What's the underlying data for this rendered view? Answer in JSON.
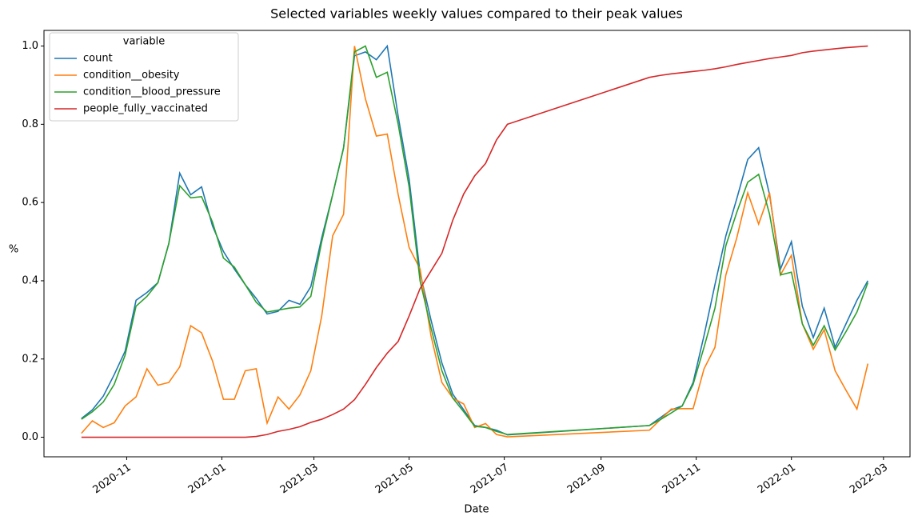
{
  "chart_data": {
    "type": "line",
    "title": "Selected variables weekly values compared to their peak values",
    "x_label": "Date",
    "y_label": "%",
    "x": [
      "2020-10-03",
      "2020-10-10",
      "2020-10-17",
      "2020-10-24",
      "2020-10-31",
      "2020-11-07",
      "2020-11-14",
      "2020-11-21",
      "2020-11-28",
      "2020-12-05",
      "2020-12-12",
      "2020-12-19",
      "2020-12-26",
      "2021-01-02",
      "2021-01-09",
      "2021-01-16",
      "2021-01-23",
      "2021-01-30",
      "2021-02-06",
      "2021-02-13",
      "2021-02-20",
      "2021-02-27",
      "2021-03-06",
      "2021-03-13",
      "2021-03-20",
      "2021-03-27",
      "2021-04-03",
      "2021-04-10",
      "2021-04-17",
      "2021-04-24",
      "2021-05-01",
      "2021-05-08",
      "2021-05-15",
      "2021-05-22",
      "2021-05-29",
      "2021-06-05",
      "2021-06-12",
      "2021-06-19",
      "2021-06-26",
      "2021-07-03",
      "2021-10-02",
      "2021-10-09",
      "2021-10-16",
      "2021-10-23",
      "2021-10-30",
      "2021-11-06",
      "2021-11-13",
      "2021-11-20",
      "2021-11-27",
      "2021-12-04",
      "2021-12-11",
      "2021-12-18",
      "2021-12-25",
      "2022-01-01",
      "2022-01-08",
      "2022-01-15",
      "2022-01-22",
      "2022-01-29",
      "2022-02-05",
      "2022-02-12",
      "2022-02-19"
    ],
    "series": [
      {
        "name": "count",
        "color": "#1f77b4",
        "values": [
          0.048,
          0.07,
          0.105,
          0.16,
          0.22,
          0.35,
          0.37,
          0.395,
          0.495,
          0.675,
          0.62,
          0.64,
          0.54,
          0.475,
          0.43,
          0.39,
          0.355,
          0.315,
          0.322,
          0.35,
          0.34,
          0.385,
          0.51,
          0.62,
          0.74,
          0.975,
          0.985,
          0.965,
          1.0,
          0.82,
          0.66,
          0.42,
          0.3,
          0.19,
          0.11,
          0.07,
          0.03,
          0.025,
          0.018,
          0.006,
          0.03,
          0.05,
          0.07,
          0.08,
          0.14,
          0.26,
          0.39,
          0.515,
          0.61,
          0.71,
          0.74,
          0.62,
          0.43,
          0.5,
          0.335,
          0.255,
          0.33,
          0.23,
          0.29,
          0.35,
          0.4
        ]
      },
      {
        "name": "condition__obesity",
        "color": "#ff7f0e",
        "values": [
          0.01,
          0.042,
          0.025,
          0.037,
          0.08,
          0.103,
          0.175,
          0.133,
          0.14,
          0.18,
          0.285,
          0.267,
          0.195,
          0.097,
          0.097,
          0.17,
          0.175,
          0.036,
          0.103,
          0.072,
          0.108,
          0.17,
          0.31,
          0.515,
          0.57,
          1.0,
          0.865,
          0.77,
          0.775,
          0.62,
          0.485,
          0.43,
          0.26,
          0.14,
          0.1,
          0.085,
          0.025,
          0.035,
          0.007,
          0.001,
          0.018,
          0.045,
          0.072,
          0.073,
          0.073,
          0.175,
          0.23,
          0.415,
          0.51,
          0.625,
          0.545,
          0.625,
          0.415,
          0.465,
          0.29,
          0.225,
          0.275,
          0.17,
          0.12,
          0.072,
          0.188
        ]
      },
      {
        "name": "condition__blood_pressure",
        "color": "#2ca02c",
        "values": [
          0.046,
          0.065,
          0.09,
          0.135,
          0.21,
          0.335,
          0.36,
          0.395,
          0.495,
          0.643,
          0.612,
          0.615,
          0.55,
          0.458,
          0.435,
          0.39,
          0.345,
          0.32,
          0.325,
          0.33,
          0.333,
          0.36,
          0.5,
          0.62,
          0.74,
          0.985,
          1.0,
          0.92,
          0.933,
          0.8,
          0.64,
          0.4,
          0.28,
          0.17,
          0.1,
          0.065,
          0.028,
          0.025,
          0.015,
          0.007,
          0.03,
          0.045,
          0.062,
          0.08,
          0.135,
          0.23,
          0.33,
          0.49,
          0.575,
          0.652,
          0.672,
          0.57,
          0.415,
          0.422,
          0.29,
          0.235,
          0.285,
          0.223,
          0.27,
          0.32,
          0.395
        ]
      },
      {
        "name": "people_fully_vaccinated",
        "color": "#d62728",
        "values": [
          0,
          0,
          0,
          0,
          0,
          0,
          0,
          0,
          0,
          0,
          0,
          0,
          0,
          0,
          0,
          0,
          0.002,
          0.007,
          0.015,
          0.02,
          0.027,
          0.038,
          0.046,
          0.058,
          0.072,
          0.096,
          0.135,
          0.178,
          0.215,
          0.245,
          0.31,
          0.38,
          0.425,
          0.47,
          0.555,
          0.622,
          0.668,
          0.7,
          0.76,
          0.8,
          0.92,
          0.925,
          0.929,
          0.932,
          0.935,
          0.938,
          0.942,
          0.947,
          0.953,
          0.958,
          0.963,
          0.968,
          0.972,
          0.976,
          0.983,
          0.987,
          0.99,
          0.993,
          0.996,
          0.998,
          1.0
        ]
      }
    ],
    "xlim": [
      "2020-09-09",
      "2022-03-18"
    ],
    "xticks": [
      "2020-11",
      "2021-01",
      "2021-03",
      "2021-05",
      "2021-07",
      "2021-09",
      "2021-11",
      "2022-01",
      "2022-03"
    ],
    "ylim": [
      -0.05,
      1.04
    ],
    "yticks": [
      {
        "value": 0,
        "label": "0.0"
      },
      {
        "value": 0.2,
        "label": "0.2"
      },
      {
        "value": 0.4,
        "label": "0.4"
      },
      {
        "value": 0.6,
        "label": "0.6"
      },
      {
        "value": 0.8,
        "label": "0.8"
      },
      {
        "value": 1,
        "label": "1.0"
      }
    ],
    "legend_title": "variable",
    "legend_position": "upper left"
  }
}
